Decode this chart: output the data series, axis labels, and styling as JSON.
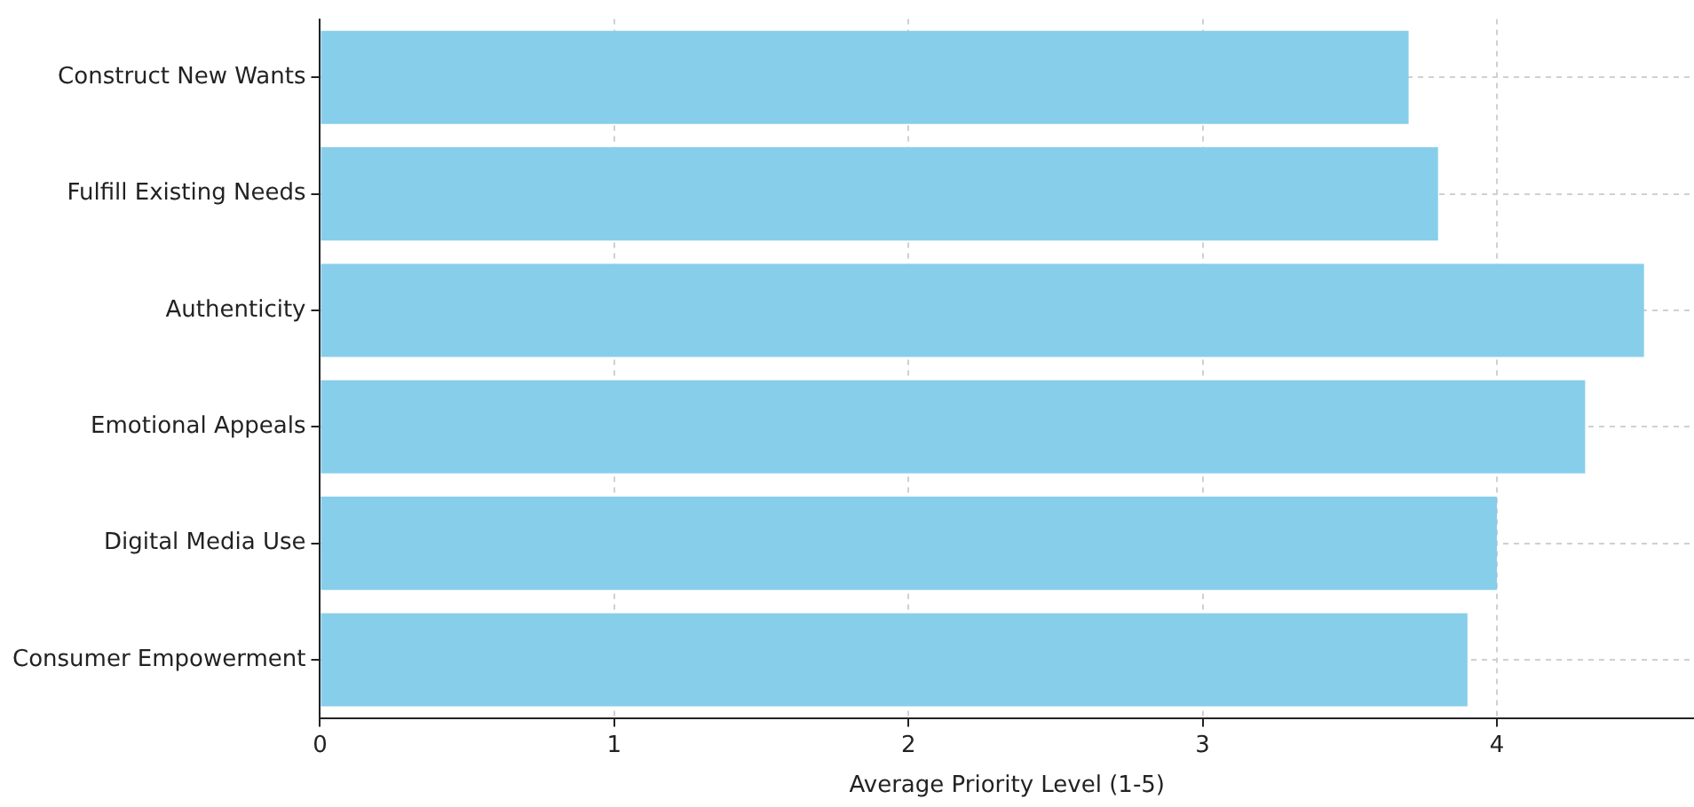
{
  "chart_data": {
    "type": "bar",
    "orientation": "horizontal",
    "xlabel": "Average Priority Level (1-5)",
    "categories": [
      "Construct New Wants",
      "Fulfill Existing Needs",
      "Authenticity",
      "Emotional Appeals",
      "Digital Media Use",
      "Consumer Empowerment"
    ],
    "values": [
      3.7,
      3.8,
      4.5,
      4.3,
      4.0,
      3.9
    ],
    "color": "#87ceeb",
    "xlim": [
      0,
      4.67
    ],
    "xticks": [
      0,
      1,
      2,
      3,
      4
    ],
    "grid": true,
    "legend": false
  }
}
